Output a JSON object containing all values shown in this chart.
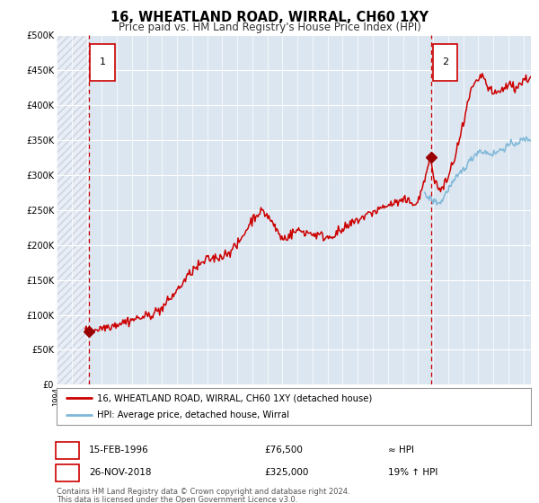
{
  "title": "16, WHEATLAND ROAD, WIRRAL, CH60 1XY",
  "subtitle": "Price paid vs. HM Land Registry's House Price Index (HPI)",
  "background_color": "#dce6f1",
  "plot_bg_color": "#dce6f1",
  "outer_bg_color": "#ffffff",
  "hpi_line_color": "#7fb8d8",
  "price_line_color": "#cc0000",
  "marker_color": "#990000",
  "vline_color": "#cc0000",
  "grid_color": "#ffffff",
  "ylim": [
    0,
    500000
  ],
  "yticks": [
    0,
    50000,
    100000,
    150000,
    200000,
    250000,
    300000,
    350000,
    400000,
    450000,
    500000
  ],
  "ytick_labels": [
    "£0",
    "£50K",
    "£100K",
    "£150K",
    "£200K",
    "£250K",
    "£300K",
    "£350K",
    "£400K",
    "£450K",
    "£500K"
  ],
  "sale1_date": 1996.12,
  "sale1_price": 76500,
  "sale1_label": "1",
  "sale2_date": 2018.9,
  "sale2_price": 325000,
  "sale2_label": "2",
  "legend_line1": "16, WHEATLAND ROAD, WIRRAL, CH60 1XY (detached house)",
  "legend_line2": "HPI: Average price, detached house, Wirral",
  "info1_date": "15-FEB-1996",
  "info1_price": "£76,500",
  "info1_hpi": "≈ HPI",
  "info2_date": "26-NOV-2018",
  "info2_price": "£325,000",
  "info2_hpi": "19% ↑ HPI",
  "footnote1": "Contains HM Land Registry data © Crown copyright and database right 2024.",
  "footnote2": "This data is licensed under the Open Government Licence v3.0.",
  "xmin": 1994,
  "xmax": 2025.5
}
